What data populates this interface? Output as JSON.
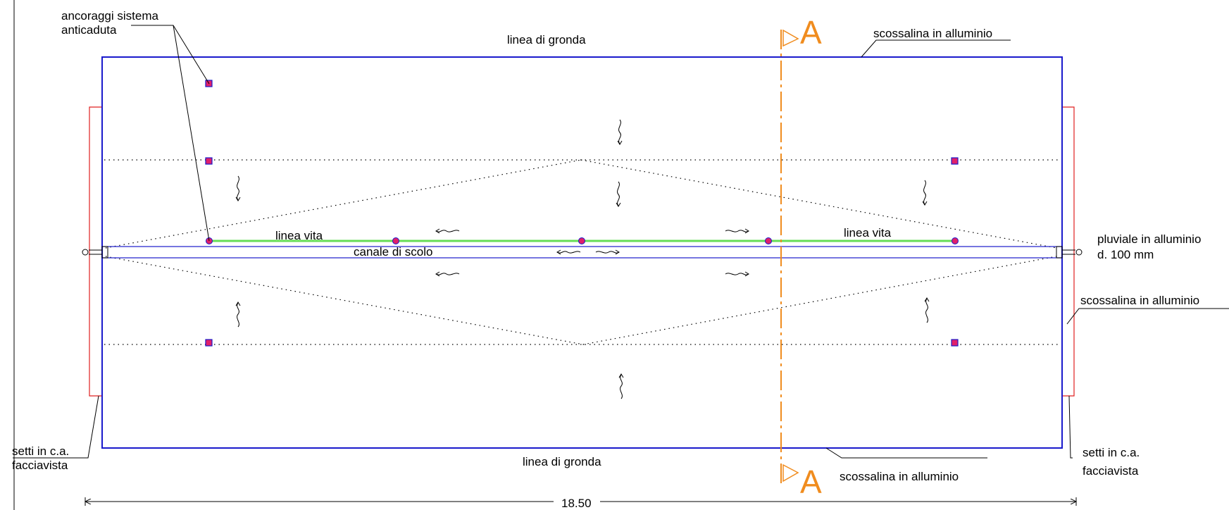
{
  "labels": {
    "eave_top": "linea di gronda",
    "eave_bottom": "linea di gronda",
    "flashing_top": "scossalina in alluminio",
    "flashing_bottom": "scossalina in alluminio",
    "flashing_right": "scossalina in alluminio",
    "anchors_line1": "ancoraggi sistema",
    "anchors_line2": "anticaduta",
    "lifeline_left": "linea vita",
    "lifeline_right": "linea vita",
    "gutter_channel": "canale di scolo",
    "downpipe_line1": "pluviale in alluminio",
    "downpipe_line2": "d. 100 mm",
    "walls_left_line1": "setti in c.a.",
    "walls_left_line2": "facciavista",
    "walls_right_line1": "setti in c.a.",
    "walls_right_line2": "facciavista",
    "dimension": "18.50",
    "section_top": "A",
    "section_bottom": "A"
  },
  "colors": {
    "roof_outline": "#1a1acc",
    "wall": "#e02020",
    "lifeline": "#66dd55",
    "section_line": "#f08c1e",
    "anchor_fill": "#e0206a",
    "anchor_stroke": "#1a1acc",
    "leader": "#000000"
  }
}
